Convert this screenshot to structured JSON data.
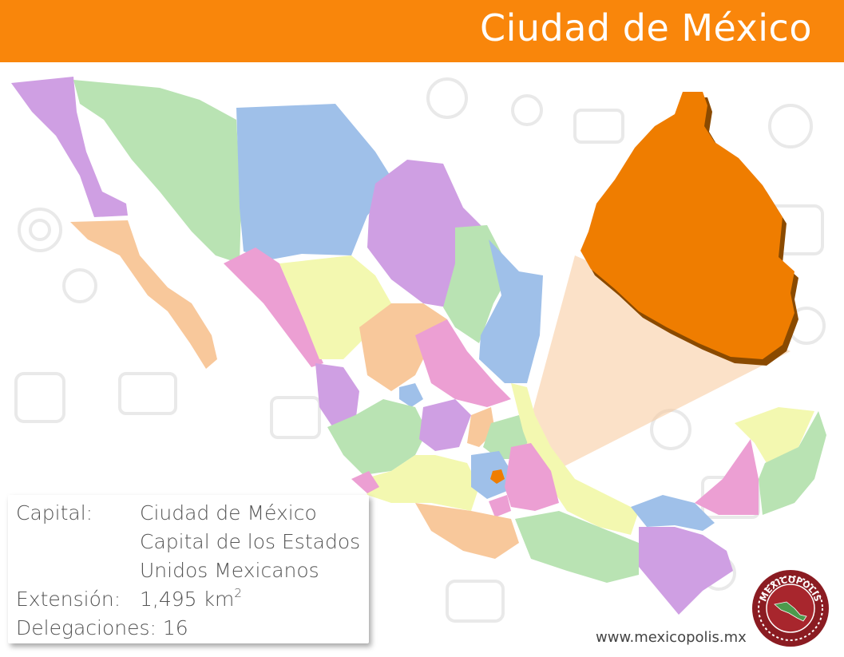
{
  "header": {
    "title": "Ciudad de México",
    "background_color": "#f9860b"
  },
  "info": {
    "capital_label": "Capital:",
    "capital_value_line1": "Ciudad de México",
    "capital_value_line2": "Capital de los Estados",
    "capital_value_line3": "Unidos Mexicanos",
    "extension_label": "Extensión:",
    "extension_value": "1,495 km",
    "extension_unit_exponent": "2",
    "delegaciones_label": "Delegaciones:",
    "delegaciones_value": "16"
  },
  "footer": {
    "website": "www.mexicopolis.mx",
    "seal_text": "MEXICOPOLIS"
  },
  "colors": {
    "highlight": "#ef7d00",
    "purple": "#cf9fe3",
    "green": "#b9e3b3",
    "blue": "#9fc0e9",
    "orange_light": "#f8c89b",
    "pink": "#ec9fd3",
    "yellow": "#f3f8b0",
    "seal": "#8b1c22"
  }
}
